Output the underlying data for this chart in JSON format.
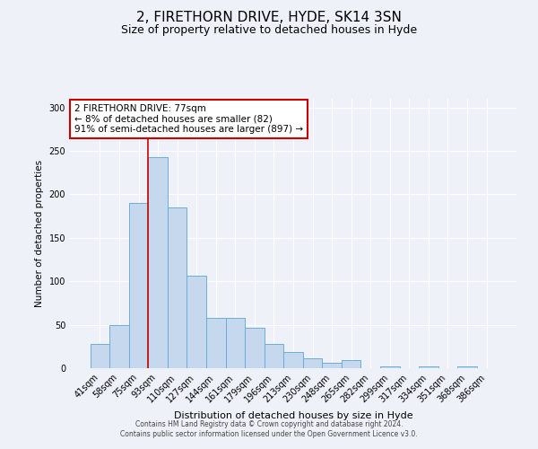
{
  "title": "2, FIRETHORN DRIVE, HYDE, SK14 3SN",
  "subtitle": "Size of property relative to detached houses in Hyde",
  "xlabel": "Distribution of detached houses by size in Hyde",
  "ylabel": "Number of detached properties",
  "bar_labels": [
    "41sqm",
    "58sqm",
    "75sqm",
    "93sqm",
    "110sqm",
    "127sqm",
    "144sqm",
    "161sqm",
    "179sqm",
    "196sqm",
    "213sqm",
    "230sqm",
    "248sqm",
    "265sqm",
    "282sqm",
    "299sqm",
    "317sqm",
    "334sqm",
    "351sqm",
    "368sqm",
    "386sqm"
  ],
  "bar_values": [
    28,
    50,
    190,
    243,
    185,
    106,
    58,
    58,
    46,
    28,
    19,
    11,
    6,
    9,
    0,
    2,
    0,
    2,
    0,
    2,
    0
  ],
  "bar_color": "#c5d8ed",
  "bar_edge_color": "#6baed6",
  "ylim": [
    0,
    310
  ],
  "yticks": [
    0,
    50,
    100,
    150,
    200,
    250,
    300
  ],
  "vline_color": "#cc0000",
  "annotation_title": "2 FIRETHORN DRIVE: 77sqm",
  "annotation_line1": "← 8% of detached houses are smaller (82)",
  "annotation_line2": "91% of semi-detached houses are larger (897) →",
  "annotation_box_color": "#ffffff",
  "annotation_box_edge": "#cc0000",
  "footer1": "Contains HM Land Registry data © Crown copyright and database right 2024.",
  "footer2": "Contains public sector information licensed under the Open Government Licence v3.0.",
  "bg_color": "#eef2f8",
  "title_fontsize": 11,
  "subtitle_fontsize": 9
}
